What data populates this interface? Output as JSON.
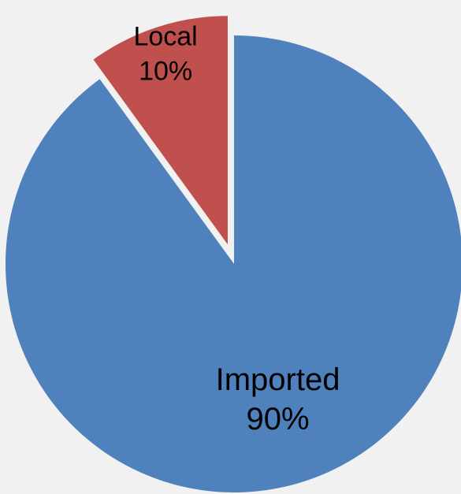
{
  "chart_data": {
    "type": "pie",
    "exploded": "Local",
    "series": [
      {
        "categories": [
          "Imported",
          "Local"
        ],
        "values": [
          90,
          10
        ],
        "value_labels": [
          "90%",
          "10%"
        ],
        "colors": [
          "#4f81bd",
          "#c0504d"
        ]
      }
    ]
  }
}
